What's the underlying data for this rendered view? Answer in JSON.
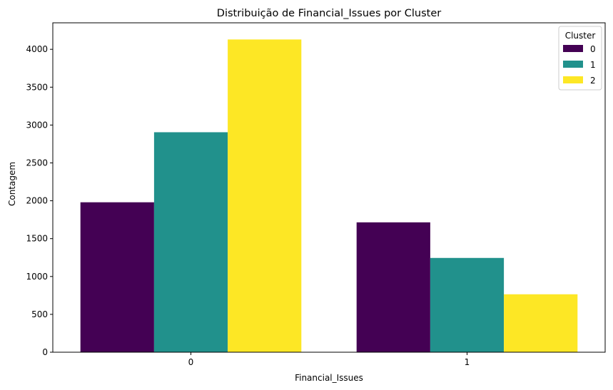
{
  "chart_data": {
    "type": "bar",
    "title": "Distribuição de Financial_Issues por Cluster",
    "xlabel": "Financial_Issues",
    "ylabel": "Contagem",
    "categories": [
      "0",
      "1"
    ],
    "ylim": [
      0,
      4350
    ],
    "yticks": [
      0,
      500,
      1000,
      1500,
      2000,
      2500,
      3000,
      3500,
      4000
    ],
    "grid": false,
    "legend": {
      "title": "Cluster",
      "placement": "top-right"
    },
    "series": [
      {
        "name": "0",
        "color": "#440154",
        "values": [
          1980,
          1715
        ]
      },
      {
        "name": "1",
        "color": "#21918c",
        "values": [
          2905,
          1245
        ]
      },
      {
        "name": "2",
        "color": "#fde725",
        "values": [
          4130,
          765
        ]
      }
    ]
  }
}
